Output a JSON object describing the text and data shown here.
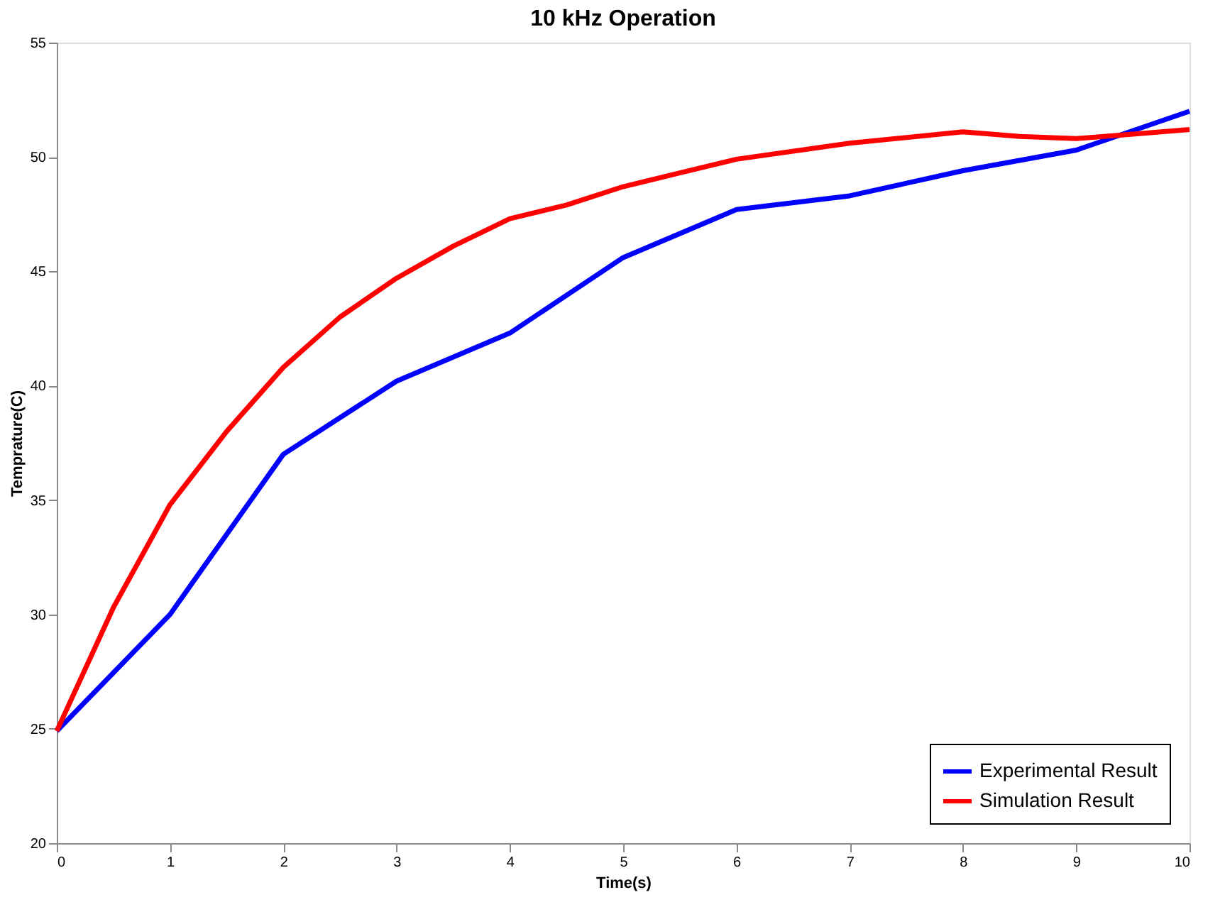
{
  "chart_data": {
    "type": "line",
    "title": "10 kHz Operation",
    "xlabel": "Time(s)",
    "ylabel": "Temprature(C)",
    "xlim": [
      0,
      10
    ],
    "xticks": [
      0,
      1,
      2,
      3,
      4,
      5,
      6,
      7,
      8,
      9,
      10
    ],
    "ylim": [
      20,
      55
    ],
    "yticks": [
      20,
      25,
      30,
      35,
      40,
      45,
      50,
      55
    ],
    "grid": false,
    "legend": "bottom right",
    "marker": "none",
    "line_style": "solid",
    "series": [
      {
        "name": "Experimental Result",
        "color": "#0000ff",
        "x": [
          0,
          1,
          2,
          3,
          4,
          5,
          6,
          7,
          8,
          9,
          10
        ],
        "values": [
          24.9,
          30,
          37,
          40.2,
          42.3,
          45.6,
          47.7,
          48.3,
          49.4,
          50.3,
          52
        ]
      },
      {
        "name": "Simulation Result",
        "color": "#ff0000",
        "x": [
          0,
          0.5,
          1,
          1.5,
          2,
          2.5,
          3,
          3.5,
          4,
          4.5,
          5,
          5.5,
          6,
          7,
          8,
          8.5,
          9,
          9.5,
          10
        ],
        "values": [
          24.9,
          30.3,
          34.8,
          38,
          40.8,
          43,
          44.7,
          46.1,
          47.3,
          47.9,
          48.7,
          49.3,
          49.9,
          50.6,
          51.1,
          50.9,
          50.8,
          51,
          51.2
        ]
      }
    ]
  }
}
